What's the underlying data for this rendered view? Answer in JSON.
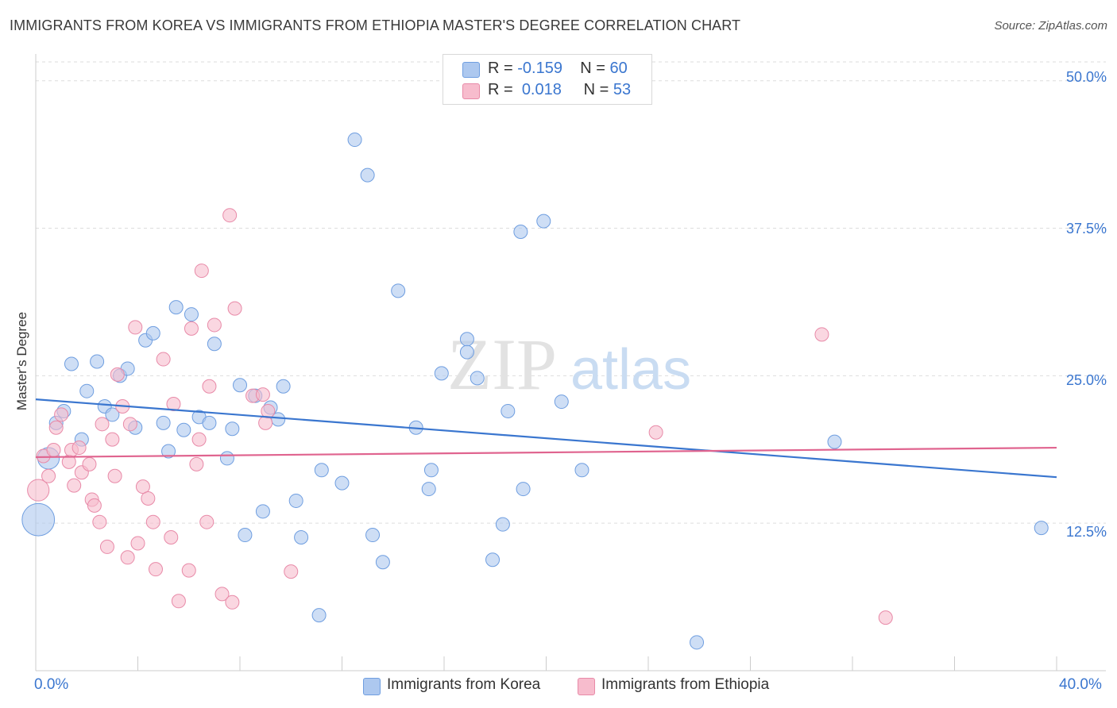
{
  "title": "IMMIGRANTS FROM KOREA VS IMMIGRANTS FROM ETHIOPIA MASTER'S DEGREE CORRELATION CHART",
  "source": "Source: ZipAtlas.com",
  "watermark": {
    "zip": "ZIP",
    "atlas": "atlas"
  },
  "legend": {
    "korea": {
      "r_label": "R =",
      "r_value": "-0.159",
      "n_label": "N =",
      "n_value": "60"
    },
    "ethiopia": {
      "r_label": "R =",
      "r_value": "0.018",
      "n_label": "N =",
      "n_value": "53"
    }
  },
  "colors": {
    "korea_fill": "#adc8ef",
    "korea_stroke": "#6f9ee0",
    "korea_line": "#3a76cf",
    "ethiopia_fill": "#f7bccd",
    "ethiopia_stroke": "#e88aa8",
    "ethiopia_line": "#e0648f",
    "axis_label": "#3a76cf",
    "grid": "#dddddd"
  },
  "chart_data": {
    "type": "scatter",
    "title": "IMMIGRANTS FROM KOREA VS IMMIGRANTS FROM ETHIOPIA MASTER'S DEGREE CORRELATION CHART",
    "xlabel": "",
    "ylabel": "Master's Degree",
    "xlim": [
      0,
      40
    ],
    "ylim": [
      0,
      52
    ],
    "x_tick_labels": [
      "0.0%",
      "40.0%"
    ],
    "y_ticks": [
      12.5,
      25.0,
      37.5,
      50.0
    ],
    "y_tick_labels": [
      "12.5%",
      "25.0%",
      "37.5%",
      "50.0%"
    ],
    "grid": true,
    "legend_position": "top-center",
    "series": [
      {
        "name": "Immigrants from Korea",
        "color": "#6f9ee0",
        "r": -0.159,
        "n": 60,
        "trend": {
          "x": [
            0,
            40
          ],
          "y": [
            23.0,
            16.4
          ]
        },
        "points": [
          [
            0.1,
            12.8,
            2.4
          ],
          [
            0.5,
            18.0,
            1.6
          ],
          [
            0.8,
            21.0,
            1.0
          ],
          [
            1.1,
            22.0,
            1.0
          ],
          [
            1.4,
            26.0,
            1.0
          ],
          [
            1.8,
            19.6,
            1.0
          ],
          [
            2.0,
            23.7,
            1.0
          ],
          [
            2.4,
            26.2,
            1.0
          ],
          [
            2.7,
            22.4,
            1.0
          ],
          [
            3.0,
            21.7,
            1.0
          ],
          [
            3.3,
            25.0,
            1.0
          ],
          [
            3.6,
            25.6,
            1.0
          ],
          [
            3.9,
            20.6,
            1.0
          ],
          [
            4.3,
            28.0,
            1.0
          ],
          [
            4.6,
            28.6,
            1.0
          ],
          [
            5.0,
            21.0,
            1.0
          ],
          [
            5.2,
            18.6,
            1.0
          ],
          [
            5.5,
            30.8,
            1.0
          ],
          [
            5.8,
            20.4,
            1.0
          ],
          [
            6.1,
            30.2,
            1.0
          ],
          [
            6.4,
            21.5,
            1.0
          ],
          [
            6.8,
            21.0,
            1.0
          ],
          [
            7.0,
            27.7,
            1.0
          ],
          [
            7.5,
            18.0,
            1.0
          ],
          [
            7.7,
            20.5,
            1.0
          ],
          [
            8.0,
            24.2,
            1.0
          ],
          [
            8.2,
            11.5,
            1.0
          ],
          [
            8.6,
            23.3,
            1.0
          ],
          [
            8.9,
            13.5,
            1.0
          ],
          [
            9.2,
            22.3,
            1.0
          ],
          [
            9.5,
            21.3,
            1.0
          ],
          [
            9.7,
            24.1,
            1.0
          ],
          [
            10.2,
            14.4,
            1.0
          ],
          [
            10.4,
            11.3,
            1.0
          ],
          [
            11.1,
            4.7,
            1.0
          ],
          [
            11.2,
            17.0,
            1.0
          ],
          [
            12.0,
            15.9,
            1.0
          ],
          [
            12.5,
            45.0,
            1.0
          ],
          [
            13.0,
            42.0,
            1.0
          ],
          [
            13.2,
            11.5,
            1.0
          ],
          [
            13.6,
            9.2,
            1.0
          ],
          [
            14.2,
            32.2,
            1.0
          ],
          [
            14.9,
            20.6,
            1.0
          ],
          [
            15.4,
            15.4,
            1.0
          ],
          [
            15.5,
            17.0,
            1.0
          ],
          [
            15.9,
            25.2,
            1.0
          ],
          [
            16.9,
            28.1,
            1.0
          ],
          [
            16.9,
            27.0,
            1.0
          ],
          [
            17.3,
            24.8,
            1.0
          ],
          [
            17.9,
            9.4,
            1.0
          ],
          [
            18.3,
            12.4,
            1.0
          ],
          [
            18.5,
            22.0,
            1.0
          ],
          [
            19.0,
            37.2,
            1.0
          ],
          [
            19.1,
            15.4,
            1.0
          ],
          [
            19.9,
            38.1,
            1.0
          ],
          [
            20.6,
            22.8,
            1.0
          ],
          [
            21.4,
            17.0,
            1.0
          ],
          [
            25.9,
            2.4,
            1.0
          ],
          [
            31.3,
            19.4,
            1.0
          ],
          [
            39.4,
            12.1,
            1.0
          ]
        ]
      },
      {
        "name": "Immigrants from Ethiopia",
        "color": "#e88aa8",
        "r": 0.018,
        "n": 53,
        "trend": {
          "x": [
            0,
            40
          ],
          "y": [
            18.1,
            18.9
          ]
        },
        "points": [
          [
            0.1,
            15.3,
            1.6
          ],
          [
            0.3,
            18.2,
            1.0
          ],
          [
            0.5,
            16.5,
            1.0
          ],
          [
            0.7,
            18.7,
            1.0
          ],
          [
            0.8,
            20.6,
            1.0
          ],
          [
            1.0,
            21.7,
            1.0
          ],
          [
            1.3,
            17.7,
            1.0
          ],
          [
            1.4,
            18.7,
            1.0
          ],
          [
            1.5,
            15.7,
            1.0
          ],
          [
            1.7,
            18.9,
            1.0
          ],
          [
            1.8,
            16.8,
            1.0
          ],
          [
            2.1,
            17.5,
            1.0
          ],
          [
            2.2,
            14.5,
            1.0
          ],
          [
            2.3,
            14.0,
            1.0
          ],
          [
            2.5,
            12.6,
            1.0
          ],
          [
            2.6,
            20.9,
            1.0
          ],
          [
            2.8,
            10.5,
            1.0
          ],
          [
            3.0,
            19.6,
            1.0
          ],
          [
            3.1,
            16.5,
            1.0
          ],
          [
            3.2,
            25.1,
            1.0
          ],
          [
            3.4,
            22.4,
            1.0
          ],
          [
            3.6,
            9.6,
            1.0
          ],
          [
            3.7,
            20.9,
            1.0
          ],
          [
            3.9,
            29.1,
            1.0
          ],
          [
            4.0,
            10.8,
            1.0
          ],
          [
            4.2,
            15.6,
            1.0
          ],
          [
            4.4,
            14.6,
            1.0
          ],
          [
            4.6,
            12.6,
            1.0
          ],
          [
            4.7,
            8.6,
            1.0
          ],
          [
            5.0,
            26.4,
            1.0
          ],
          [
            5.3,
            11.3,
            1.0
          ],
          [
            5.4,
            22.6,
            1.0
          ],
          [
            5.6,
            5.9,
            1.0
          ],
          [
            6.0,
            8.5,
            1.0
          ],
          [
            6.1,
            29.0,
            1.0
          ],
          [
            6.3,
            17.5,
            1.0
          ],
          [
            6.4,
            19.6,
            1.0
          ],
          [
            6.5,
            33.9,
            1.0
          ],
          [
            6.7,
            12.6,
            1.0
          ],
          [
            6.8,
            24.1,
            1.0
          ],
          [
            7.0,
            29.3,
            1.0
          ],
          [
            7.3,
            6.5,
            1.0
          ],
          [
            7.6,
            38.6,
            1.0
          ],
          [
            7.7,
            5.8,
            1.0
          ],
          [
            7.8,
            30.7,
            1.0
          ],
          [
            8.5,
            23.3,
            1.0
          ],
          [
            8.9,
            23.4,
            1.0
          ],
          [
            9.0,
            21.0,
            1.0
          ],
          [
            9.1,
            22.0,
            1.0
          ],
          [
            10.0,
            8.4,
            1.0
          ],
          [
            24.3,
            20.2,
            1.0
          ],
          [
            30.8,
            28.5,
            1.0
          ],
          [
            33.3,
            4.5,
            1.0
          ]
        ]
      }
    ]
  },
  "bottom_legend": {
    "korea": "Immigrants from Korea",
    "ethiopia": "Immigrants from Ethiopia"
  }
}
